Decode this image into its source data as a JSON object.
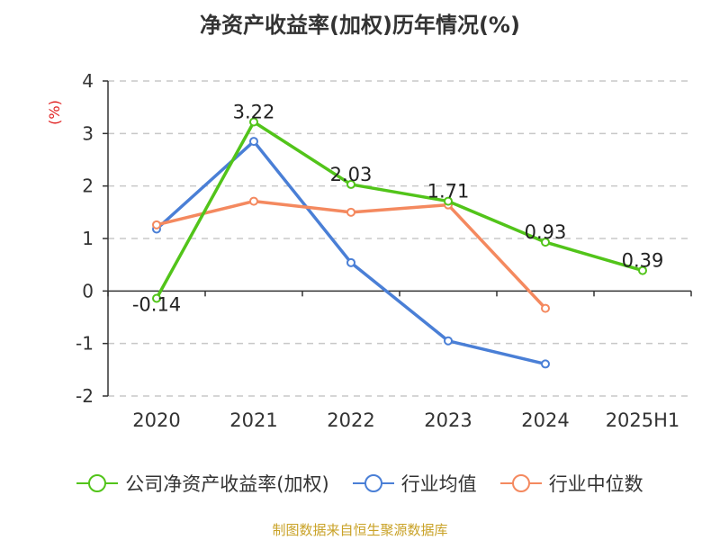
{
  "title": "净资产收益率(加权)历年情况(%)",
  "source": "制图数据来自恒生聚源数据库",
  "chart_data": {
    "type": "line",
    "title": "净资产收益率(加权)历年情况(%)",
    "ylabel": "(%)",
    "ylim": [
      -2,
      4
    ],
    "yticks": [
      -2,
      -1,
      0,
      1,
      2,
      3,
      4
    ],
    "categories": [
      "2020",
      "2021",
      "2022",
      "2023",
      "2024",
      "2025H1"
    ],
    "grid": true,
    "legend_position": "bottom",
    "series": [
      {
        "name": "公司净资产收益率(加权)",
        "color": "#52c41a",
        "values": [
          -0.14,
          3.22,
          2.03,
          1.71,
          0.93,
          0.39
        ],
        "labels": [
          "-0.14",
          "3.22",
          "2.03",
          "1.71",
          "0.93",
          "0.39"
        ]
      },
      {
        "name": "行业均值",
        "color": "#4a7fd6",
        "values": [
          1.18,
          2.85,
          0.54,
          -0.95,
          -1.39,
          null
        ]
      },
      {
        "name": "行业中位数",
        "color": "#f4895f",
        "values": [
          1.26,
          1.71,
          1.5,
          1.64,
          -0.33,
          null
        ]
      }
    ]
  }
}
